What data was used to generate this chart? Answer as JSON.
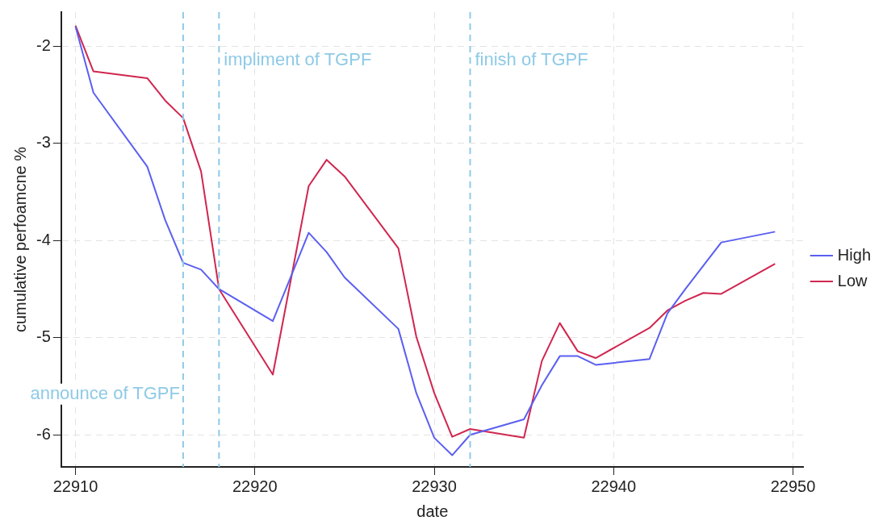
{
  "chart_data": {
    "type": "line",
    "xlabel": "date",
    "ylabel": "cumulative perfoamcne %",
    "xlim": [
      22909.2,
      22950.6
    ],
    "ylim": [
      -6.33,
      -1.65
    ],
    "xticks": [
      22910,
      22920,
      22930,
      22940,
      22950
    ],
    "yticks": [
      -6,
      -5,
      -4,
      -3,
      -2
    ],
    "grid": true,
    "legend": "right",
    "marker": "none",
    "line_style": "solid",
    "series": [
      {
        "name": "High",
        "color": "#5b5ff0",
        "x": [
          22910,
          22911,
          22914,
          22915,
          22916,
          22917,
          22918,
          22921,
          22923,
          22924,
          22925,
          22928,
          22929,
          22930,
          22931,
          22932,
          22935,
          22936,
          22937,
          22938,
          22939,
          22942,
          22943,
          22944,
          22946,
          22949
        ],
        "values": [
          -1.8,
          -2.48,
          -3.24,
          -3.79,
          -4.23,
          -4.3,
          -4.5,
          -4.83,
          -3.92,
          -4.12,
          -4.38,
          -4.91,
          -5.57,
          -6.03,
          -6.21,
          -6.0,
          -5.84,
          -5.49,
          -5.19,
          -5.19,
          -5.28,
          -5.22,
          -4.75,
          -4.5,
          -4.02,
          -3.91
        ]
      },
      {
        "name": "Low",
        "color": "#d0264f",
        "x": [
          22910,
          22911,
          22914,
          22915,
          22916,
          22917,
          22918,
          22921,
          22923,
          22924,
          22925,
          22928,
          22929,
          22930,
          22931,
          22932,
          22935,
          22936,
          22937,
          22938,
          22939,
          22942,
          22943,
          22944,
          22945,
          22946,
          22949
        ],
        "values": [
          -1.79,
          -2.26,
          -2.33,
          -2.56,
          -2.74,
          -3.29,
          -4.5,
          -5.38,
          -3.44,
          -3.17,
          -3.34,
          -4.08,
          -4.99,
          -5.57,
          -6.02,
          -5.94,
          -6.03,
          -5.24,
          -4.85,
          -5.14,
          -5.21,
          -4.9,
          -4.72,
          -4.62,
          -4.54,
          -4.55,
          -4.24
        ]
      }
    ],
    "ref_lines": [
      {
        "axis": "x",
        "value": 22916,
        "label": "announce of TGPF",
        "color": "#8ecae6",
        "line_style": "dashed"
      },
      {
        "axis": "x",
        "value": 22918,
        "label": "impliment of TGPF",
        "color": "#8ecae6",
        "line_style": "dashed"
      },
      {
        "axis": "x",
        "value": 22932,
        "label": "finish of TGPF",
        "color": "#8ecae6",
        "line_style": "dashed"
      }
    ]
  }
}
